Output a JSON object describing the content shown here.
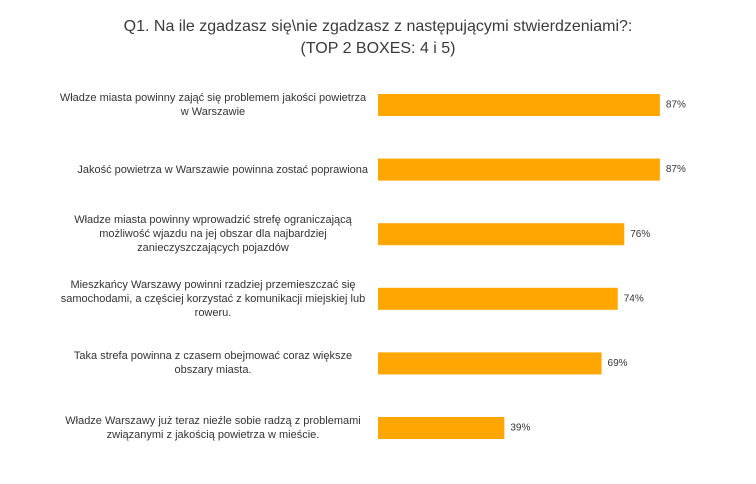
{
  "chart_data": {
    "type": "bar",
    "orientation": "horizontal",
    "title": "Q1. Na ile zgadzasz się\\nie zgadzasz z następującymi stwierdzeniami?:",
    "subtitle": "(TOP 2 BOXES: 4 i 5)",
    "categories": [
      "Władze miasta powinny zająć się problemem jakości powietrza w Warszawie",
      "Jakość powietrza w Warszawie powinna zostać poprawiona",
      "Władze miasta powinny wprowadzić strefę ograniczającą możliwość wjazdu na jej obszar dla najbardziej zanieczyszczających pojazdów",
      "Mieszkańcy Warszawy powinni rzadziej przemieszczać się samochodami, a częściej korzystać z komunikacji miejskiej lub roweru.",
      "Taka strefa powinna z czasem obejmować coraz większe obszary miasta.",
      "Władze Warszawy już teraz nieźle sobie radzą z problemami związanymi z jakością powietrza w mieście."
    ],
    "values": [
      87,
      87,
      76,
      74,
      69,
      39
    ],
    "value_labels": [
      "87%",
      "87%",
      "76%",
      "74%",
      "69%",
      "39%"
    ],
    "color": "#ffa600"
  }
}
